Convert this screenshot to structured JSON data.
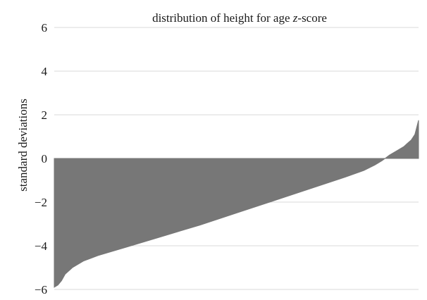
{
  "chart_data": {
    "type": "area",
    "title": "distribution of height for age z-score",
    "xlabel": "",
    "ylabel": "standard deviations",
    "ylim": [
      -6,
      6
    ],
    "yticks": [
      6,
      4,
      2,
      0,
      -2,
      -4,
      -6
    ],
    "ytick_labels": [
      "6",
      "4",
      "2",
      "0",
      "−2",
      "−4",
      "−6"
    ],
    "grid": true,
    "legend": "none",
    "fill_color": "#777777",
    "grid_color": "#d9d9d9",
    "text_color": "#1a1a1a",
    "x": [
      0,
      0.01,
      0.02,
      0.03,
      0.05,
      0.08,
      0.12,
      0.2,
      0.3,
      0.4,
      0.5,
      0.6,
      0.7,
      0.8,
      0.85,
      0.88,
      0.9,
      0.92,
      0.94,
      0.96,
      0.97,
      0.98,
      0.99,
      1.0
    ],
    "values": [
      -5.9,
      -5.8,
      -5.6,
      -5.3,
      -5.0,
      -4.7,
      -4.45,
      -4.05,
      -3.55,
      -3.05,
      -2.5,
      -1.95,
      -1.4,
      -0.85,
      -0.55,
      -0.3,
      -0.1,
      0.15,
      0.35,
      0.55,
      0.7,
      0.85,
      1.1,
      1.75
    ]
  }
}
